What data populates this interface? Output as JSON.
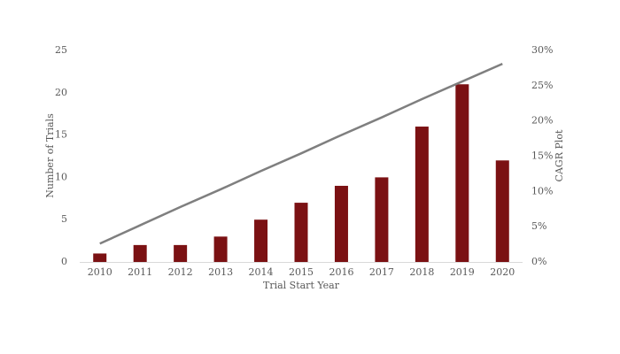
{
  "chart_data": {
    "type": "bar",
    "x_label": "Trial Start Year",
    "y_label": "Number of Trials",
    "y2_label": "CAGR Plot",
    "categories": [
      "2010",
      "2011",
      "2012",
      "2013",
      "2014",
      "2015",
      "2016",
      "2017",
      "2018",
      "2019",
      "2020"
    ],
    "series": [
      {
        "type": "bar",
        "color": "#7b1113",
        "values": [
          1,
          2,
          2,
          3,
          5,
          7,
          9,
          10,
          16,
          21,
          12
        ]
      },
      {
        "type": "line",
        "axis": "y2",
        "color": "#7f7f7f",
        "values": [
          2.6,
          5.2,
          7.8,
          10.3,
          12.9,
          15.4,
          18.0,
          20.5,
          23.1,
          25.6,
          28.1
        ]
      }
    ],
    "ylim": [
      0,
      25
    ],
    "yticks": [
      0,
      5,
      10,
      15,
      20,
      25
    ],
    "y2lim": [
      0,
      30
    ],
    "y2ticks": [
      {
        "value": 0,
        "label": "0%"
      },
      {
        "value": 5,
        "label": "5%"
      },
      {
        "value": 10,
        "label": "10%"
      },
      {
        "value": 15,
        "label": "15%"
      },
      {
        "value": 20,
        "label": "20%"
      },
      {
        "value": 25,
        "label": "25%"
      },
      {
        "value": 30,
        "label": "30%"
      }
    ],
    "grid": false
  }
}
